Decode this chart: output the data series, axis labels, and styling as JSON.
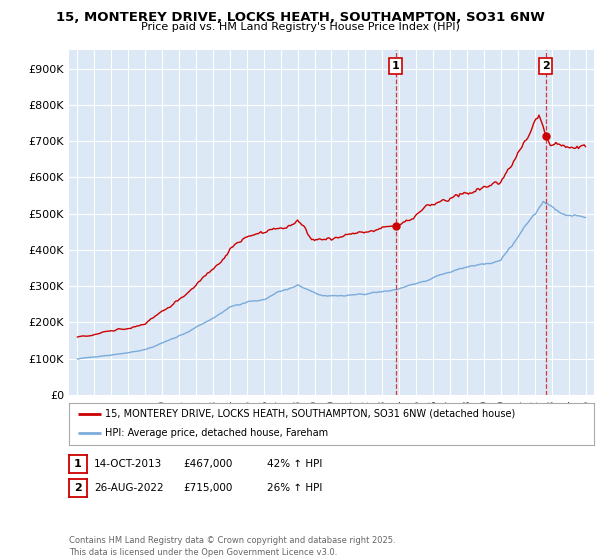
{
  "title": "15, MONTEREY DRIVE, LOCKS HEATH, SOUTHAMPTON, SO31 6NW",
  "subtitle": "Price paid vs. HM Land Registry's House Price Index (HPI)",
  "ylim": [
    0,
    950000
  ],
  "yticks": [
    0,
    100000,
    200000,
    300000,
    400000,
    500000,
    600000,
    700000,
    800000,
    900000
  ],
  "ytick_labels": [
    "£0",
    "£100K",
    "£200K",
    "£300K",
    "£400K",
    "£500K",
    "£600K",
    "£700K",
    "£800K",
    "£900K"
  ],
  "background_color": "#ffffff",
  "plot_bg_color": "#dce8f5",
  "grid_color": "#ffffff",
  "line1_color": "#cc0000",
  "line2_color": "#7aabdb",
  "marker1_date_x": 2013.79,
  "marker1_y": 467000,
  "marker2_date_x": 2022.65,
  "marker2_y": 715000,
  "vline1_x": 2013.79,
  "vline2_x": 2022.65,
  "legend_line1": "15, MONTEREY DRIVE, LOCKS HEATH, SOUTHAMPTON, SO31 6NW (detached house)",
  "legend_line2": "HPI: Average price, detached house, Fareham",
  "footnote": "Contains HM Land Registry data © Crown copyright and database right 2025.\nThis data is licensed under the Open Government Licence v3.0.",
  "xlim_left": 1994.5,
  "xlim_right": 2025.5
}
